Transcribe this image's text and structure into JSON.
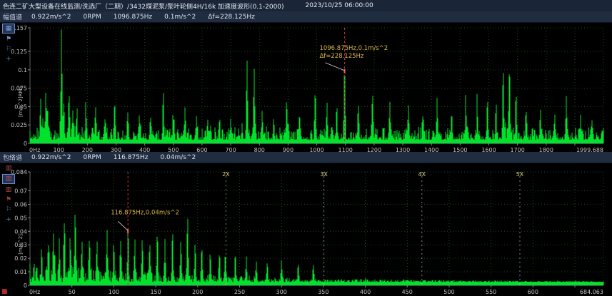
{
  "title_bar": {
    "title": "色连二矿大型设备在线监测/洗选厂（二期）/3432煤泥泵/泵叶轮侧4H/16k 加速度波形(0.1-2000)",
    "timestamp": "2023/10/25 06:00:00"
  },
  "colors": {
    "spectrum": "#00e22c",
    "grid": "#1f5a20",
    "cursor": "#cc3030",
    "annotation": "#d9b648",
    "axis_text": "#c2c2c2",
    "axis_line": "#8a8a8a",
    "harmonic_line": "#bdbdbd",
    "harmonic_label": "#ddd489",
    "leader_line": "#e3cfcf",
    "marker": "#ff5a5a"
  },
  "charts": [
    {
      "name": "amplitude-spectrum",
      "type": "spectrum-line",
      "header": {
        "type_label": "幅值谱",
        "amplitude": "0.922m/s^2",
        "rpm": "0RPM",
        "cursor_freq": "1096.875Hz",
        "cursor_value": "0.1m/s^2",
        "delta": "Δf=228.125Hz"
      },
      "y_axis": {
        "label": "[m/s^2]RMS",
        "max": 0.157,
        "ticks": [
          0.157,
          0.125,
          0.1,
          0.075,
          0.05,
          0.025,
          0
        ]
      },
      "x_axis": {
        "max": 1999.688,
        "tick_step": 100,
        "first_label": "0Hz",
        "end_label": "1999.688"
      },
      "cursor": {
        "freq": 1096.875,
        "amp": 0.098,
        "label_line1": "1096.875Hz,0.1m/s^2",
        "label_line2": "Δf=228.125Hz"
      },
      "harmonics": [],
      "spectrum": {
        "seed": 88,
        "noise_base": 0.005,
        "noise_var": 0.017,
        "noise_pow": 2.2,
        "spike": 0.018,
        "peaks": [
          [
            37,
            0.042
          ],
          [
            45,
            0.028
          ],
          [
            55,
            0.056
          ],
          [
            62,
            0.034
          ],
          [
            110,
            0.145
          ],
          [
            118,
            0.048
          ],
          [
            137,
            0.058
          ],
          [
            150,
            0.034
          ],
          [
            163,
            0.03
          ],
          [
            195,
            0.04
          ],
          [
            228,
            0.034
          ],
          [
            262,
            0.028
          ],
          [
            295,
            0.05
          ],
          [
            340,
            0.03
          ],
          [
            382,
            0.026
          ],
          [
            420,
            0.032
          ],
          [
            465,
            0.05
          ],
          [
            500,
            0.028
          ],
          [
            540,
            0.03
          ],
          [
            580,
            0.024
          ],
          [
            620,
            0.026
          ],
          [
            660,
            0.024
          ],
          [
            700,
            0.028
          ],
          [
            757,
            0.105
          ],
          [
            782,
            0.088
          ],
          [
            810,
            0.034
          ],
          [
            850,
            0.028
          ],
          [
            895,
            0.05
          ],
          [
            940,
            0.036
          ],
          [
            995,
            0.065
          ],
          [
            1035,
            0.04
          ],
          [
            1070,
            0.035
          ],
          [
            1096.875,
            0.098
          ],
          [
            1145,
            0.045
          ],
          [
            1195,
            0.06
          ],
          [
            1255,
            0.05
          ],
          [
            1320,
            0.04
          ],
          [
            1370,
            0.032
          ],
          [
            1420,
            0.045
          ],
          [
            1470,
            0.034
          ],
          [
            1520,
            0.04
          ],
          [
            1560,
            0.032
          ],
          [
            1595,
            0.05
          ],
          [
            1625,
            0.04
          ],
          [
            1650,
            0.092
          ],
          [
            1672,
            0.1
          ],
          [
            1695,
            0.06
          ],
          [
            1730,
            0.04
          ],
          [
            1780,
            0.04
          ],
          [
            1830,
            0.034
          ],
          [
            1870,
            0.046
          ],
          [
            1920,
            0.03
          ],
          [
            1960,
            0.026
          ]
        ]
      }
    },
    {
      "name": "envelope-spectrum",
      "type": "spectrum-line",
      "header": {
        "type_label": "包络谱",
        "amplitude": "0.922m/s^2",
        "rpm": "0RPM",
        "cursor_freq": "116.875Hz",
        "cursor_value": "0.04m/s^2",
        "delta": ""
      },
      "y_axis": {
        "label": "[m/s^2]",
        "max": 0.084,
        "ticks": [
          0.084,
          0.07,
          0.06,
          0.05,
          0.04,
          0.03,
          0.02,
          0.01,
          0
        ]
      },
      "x_axis": {
        "max": 684.063,
        "tick_step": 50,
        "first_label": "0Hz",
        "end_label": "684.063"
      },
      "cursor": {
        "freq": 116.875,
        "amp": 0.04,
        "label_line1": "116.875Hz,0.04m/s^2",
        "label_line2": ""
      },
      "harmonics": [
        {
          "mult": 2,
          "label": "2X"
        },
        {
          "mult": 3,
          "label": "3X"
        },
        {
          "mult": 4,
          "label": "4X"
        },
        {
          "mult": 5,
          "label": "5X"
        }
      ],
      "spectrum": {
        "seed": 1025,
        "noise_base": 0.0025,
        "noise_var": 0.014,
        "noise_pow": 1.8,
        "noise_decay": 210,
        "spike": 0.009,
        "peaks": [
          [
            14,
            0.02
          ],
          [
            22,
            0.026
          ],
          [
            28,
            0.035
          ],
          [
            35,
            0.03
          ],
          [
            41,
            0.042
          ],
          [
            48,
            0.03
          ],
          [
            54,
            0.046
          ],
          [
            62,
            0.028
          ],
          [
            71,
            0.032
          ],
          [
            80,
            0.026
          ],
          [
            92,
            0.036
          ],
          [
            100,
            0.028
          ],
          [
            108,
            0.03
          ],
          [
            116.875,
            0.04
          ],
          [
            125,
            0.028
          ],
          [
            134,
            0.032
          ],
          [
            143,
            0.026
          ],
          [
            152,
            0.037
          ],
          [
            161,
            0.028
          ],
          [
            170,
            0.032
          ],
          [
            180,
            0.028
          ],
          [
            188,
            0.05
          ],
          [
            197,
            0.026
          ],
          [
            205,
            0.024
          ],
          [
            215,
            0.022
          ],
          [
            226,
            0.02
          ],
          [
            233,
            0.022
          ],
          [
            245,
            0.018
          ],
          [
            258,
            0.016
          ],
          [
            270,
            0.015
          ],
          [
            283,
            0.014
          ],
          [
            300,
            0.013
          ],
          [
            320,
            0.012
          ],
          [
            338,
            0.011
          ]
        ]
      }
    }
  ],
  "sidebar1": {
    "icons": [
      {
        "name": "active-view-icon",
        "glyph": "▦",
        "color": "#7fa0d0",
        "selected": true
      },
      {
        "name": "flag-icon",
        "glyph": "⚑",
        "color": "#6f8fc0"
      },
      {
        "name": "report-icon",
        "glyph": "⚐",
        "color": "#5577a8"
      },
      {
        "name": "pan-icon",
        "glyph": "+",
        "color": "#5e82b8"
      }
    ]
  },
  "sidebar2": {
    "icons": [
      {
        "name": "waveform-view-icon",
        "glyph": "▥",
        "color": "#b05050"
      },
      {
        "name": "spectrum-view-icon",
        "glyph": "▥",
        "color": "#b05050",
        "selected": true
      },
      {
        "name": "envelope-view-icon",
        "glyph": "▥",
        "color": "#b05050"
      },
      {
        "name": "flag-icon",
        "glyph": "⚑",
        "color": "#a03838"
      },
      {
        "name": "report-icon",
        "glyph": "⚐",
        "color": "#5577a8"
      },
      {
        "name": "pan-icon",
        "glyph": "+",
        "color": "#5e82b8"
      }
    ]
  },
  "bottom_left_icon": {
    "name": "stop-record-icon",
    "glyph": "■"
  }
}
